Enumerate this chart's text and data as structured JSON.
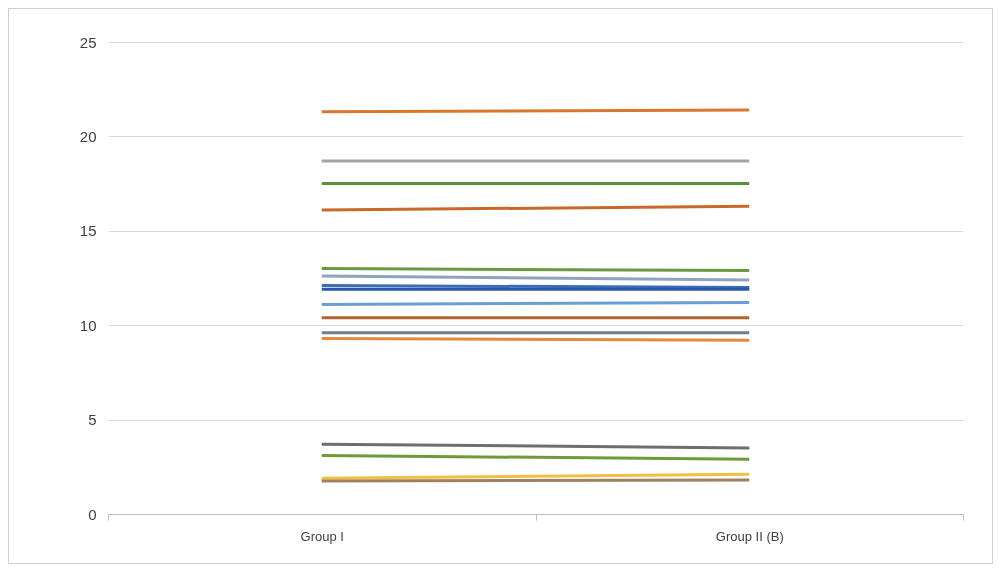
{
  "chart_data": {
    "type": "line",
    "categories": [
      "Group I",
      "Group II (B)"
    ],
    "series": [
      {
        "color": "#d9772f",
        "values": [
          21.3,
          21.4
        ]
      },
      {
        "color": "#a5a5a5",
        "values": [
          18.7,
          18.7
        ]
      },
      {
        "color": "#5e8f3a",
        "values": [
          17.5,
          17.5
        ]
      },
      {
        "color": "#c8692a",
        "values": [
          16.1,
          16.3
        ]
      },
      {
        "color": "#6a9a40",
        "values": [
          13.0,
          12.9
        ]
      },
      {
        "color": "#8fa3bf",
        "values": [
          12.6,
          12.4
        ]
      },
      {
        "color": "#3a6db5",
        "values": [
          12.1,
          12.0
        ]
      },
      {
        "color": "#2a5aa8",
        "values": [
          11.9,
          11.9
        ]
      },
      {
        "color": "#6a9fd0",
        "values": [
          11.1,
          11.2
        ]
      },
      {
        "color": "#b0642e",
        "values": [
          10.4,
          10.4
        ]
      },
      {
        "color": "#6f7f90",
        "values": [
          9.6,
          9.6
        ]
      },
      {
        "color": "#e08a40",
        "values": [
          9.3,
          9.2
        ]
      },
      {
        "color": "#6e6e6e",
        "values": [
          3.7,
          3.5
        ]
      },
      {
        "color": "#6e9a3a",
        "values": [
          3.1,
          2.9
        ]
      },
      {
        "color": "#f0c040",
        "values": [
          1.9,
          2.1
        ]
      },
      {
        "color": "#a08060",
        "values": [
          1.75,
          1.8
        ]
      }
    ],
    "ylim": [
      0,
      25
    ],
    "yticks": [
      0,
      5,
      10,
      15,
      20,
      25
    ],
    "grid": "y",
    "legend": false,
    "marker": "none",
    "line_style": "solid"
  }
}
